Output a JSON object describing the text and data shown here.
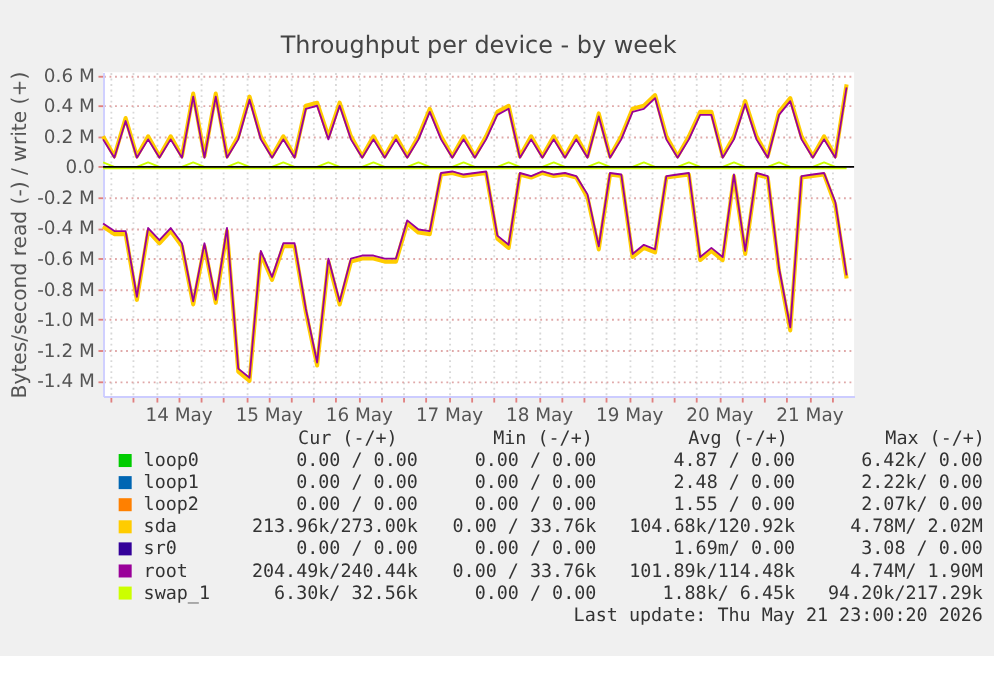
{
  "chart_data": {
    "type": "line",
    "title": "Throughput per device - by week",
    "ylabel": "Bytes/second read (-) / write (+)",
    "x": [
      "2026-05-13T16:00",
      "2026-05-13T19:00",
      "2026-05-13T22:00",
      "2026-05-14T01:00",
      "2026-05-14T04:00",
      "2026-05-14T07:00",
      "2026-05-14T10:00",
      "2026-05-14T13:00",
      "2026-05-14T16:00",
      "2026-05-14T19:00",
      "2026-05-14T22:00",
      "2026-05-15T01:00",
      "2026-05-15T04:00",
      "2026-05-15T07:00",
      "2026-05-15T10:00",
      "2026-05-15T13:00",
      "2026-05-15T16:00",
      "2026-05-15T19:00",
      "2026-05-15T22:00",
      "2026-05-16T01:00",
      "2026-05-16T04:00",
      "2026-05-16T07:00",
      "2026-05-16T10:00",
      "2026-05-16T13:00",
      "2026-05-16T16:00",
      "2026-05-16T19:00",
      "2026-05-16T22:00",
      "2026-05-17T01:00",
      "2026-05-17T04:00",
      "2026-05-17T07:00",
      "2026-05-17T10:00",
      "2026-05-17T13:00",
      "2026-05-17T16:00",
      "2026-05-17T19:00",
      "2026-05-17T22:00",
      "2026-05-18T01:00",
      "2026-05-18T04:00",
      "2026-05-18T07:00",
      "2026-05-18T10:00",
      "2026-05-18T13:00",
      "2026-05-18T16:00",
      "2026-05-18T19:00",
      "2026-05-18T22:00",
      "2026-05-19T01:00",
      "2026-05-19T04:00",
      "2026-05-19T07:00",
      "2026-05-19T10:00",
      "2026-05-19T13:00",
      "2026-05-19T16:00",
      "2026-05-19T19:00",
      "2026-05-19T22:00",
      "2026-05-20T01:00",
      "2026-05-20T04:00",
      "2026-05-20T07:00",
      "2026-05-20T10:00",
      "2026-05-20T13:00",
      "2026-05-20T16:00",
      "2026-05-20T19:00",
      "2026-05-20T22:00",
      "2026-05-21T01:00",
      "2026-05-21T04:00",
      "2026-05-21T07:00",
      "2026-05-21T10:00",
      "2026-05-21T13:00",
      "2026-05-21T16:00",
      "2026-05-21T19:00",
      "2026-05-21T22:00"
    ],
    "xlim": [
      "2026-05-13T16:00",
      "2026-05-22T00:00"
    ],
    "xticks": [
      {
        "value": "2026-05-13T18:00",
        "label": null
      },
      {
        "value": "2026-05-14T00:00",
        "label": null
      },
      {
        "value": "2026-05-14T06:00",
        "label": null
      },
      {
        "value": "2026-05-14T12:00",
        "label": "14 May"
      },
      {
        "value": "2026-05-14T18:00",
        "label": null
      },
      {
        "value": "2026-05-15T00:00",
        "label": null
      },
      {
        "value": "2026-05-15T06:00",
        "label": null
      },
      {
        "value": "2026-05-15T12:00",
        "label": "15 May"
      },
      {
        "value": "2026-05-15T18:00",
        "label": null
      },
      {
        "value": "2026-05-16T00:00",
        "label": null
      },
      {
        "value": "2026-05-16T06:00",
        "label": null
      },
      {
        "value": "2026-05-16T12:00",
        "label": "16 May"
      },
      {
        "value": "2026-05-16T18:00",
        "label": null
      },
      {
        "value": "2026-05-17T00:00",
        "label": null
      },
      {
        "value": "2026-05-17T06:00",
        "label": null
      },
      {
        "value": "2026-05-17T12:00",
        "label": "17 May"
      },
      {
        "value": "2026-05-17T18:00",
        "label": null
      },
      {
        "value": "2026-05-18T00:00",
        "label": null
      },
      {
        "value": "2026-05-18T06:00",
        "label": null
      },
      {
        "value": "2026-05-18T12:00",
        "label": "18 May"
      },
      {
        "value": "2026-05-18T18:00",
        "label": null
      },
      {
        "value": "2026-05-19T00:00",
        "label": null
      },
      {
        "value": "2026-05-19T06:00",
        "label": null
      },
      {
        "value": "2026-05-19T12:00",
        "label": "19 May"
      },
      {
        "value": "2026-05-19T18:00",
        "label": null
      },
      {
        "value": "2026-05-20T00:00",
        "label": null
      },
      {
        "value": "2026-05-20T06:00",
        "label": null
      },
      {
        "value": "2026-05-20T12:00",
        "label": "20 May"
      },
      {
        "value": "2026-05-20T18:00",
        "label": null
      },
      {
        "value": "2026-05-21T00:00",
        "label": null
      },
      {
        "value": "2026-05-21T06:00",
        "label": null
      },
      {
        "value": "2026-05-21T12:00",
        "label": "21 May"
      },
      {
        "value": "2026-05-21T18:00",
        "label": null
      }
    ],
    "ylim": [
      -1500000,
      620000
    ],
    "yticks": [
      {
        "value": 600000,
        "label": "0.6 M"
      },
      {
        "value": 400000,
        "label": "0.4 M"
      },
      {
        "value": 200000,
        "label": "0.2 M"
      },
      {
        "value": 0,
        "label": "0.0"
      },
      {
        "value": -200000,
        "label": "-0.2 M"
      },
      {
        "value": -400000,
        "label": "-0.4 M"
      },
      {
        "value": -600000,
        "label": "-0.6 M"
      },
      {
        "value": -800000,
        "label": "-0.8 M"
      },
      {
        "value": -1000000,
        "label": "-1.0 M"
      },
      {
        "value": -1200000,
        "label": "-1.2 M"
      },
      {
        "value": -1400000,
        "label": "-1.4 M"
      }
    ],
    "grid": true,
    "legend": "bottom",
    "ref_lines": [
      {
        "axis": "y",
        "value": 0,
        "color": "#000000"
      }
    ],
    "series": [
      {
        "name": "loop0",
        "color": "#00cc00",
        "values": [
          null,
          null,
          null,
          null,
          null,
          null,
          null,
          null,
          null,
          null,
          null,
          null,
          null,
          null,
          null,
          null,
          null,
          null,
          null,
          null,
          null,
          null,
          null,
          null,
          null,
          null,
          null,
          null,
          null,
          null,
          null,
          null,
          null,
          null,
          null,
          null,
          null,
          null,
          null,
          null,
          null,
          null,
          null,
          null,
          null,
          null,
          null,
          null,
          null,
          null,
          null,
          null,
          null,
          null,
          null,
          null,
          null,
          null,
          null,
          null,
          null,
          null,
          null,
          null,
          null,
          null,
          null
        ]
      },
      {
        "name": "loop1",
        "color": "#0066b3",
        "values": [
          null,
          null,
          null,
          null,
          null,
          null,
          null,
          null,
          null,
          null,
          null,
          null,
          null,
          null,
          null,
          null,
          null,
          null,
          null,
          null,
          null,
          null,
          null,
          null,
          null,
          null,
          null,
          null,
          null,
          null,
          null,
          null,
          null,
          null,
          null,
          null,
          null,
          null,
          null,
          null,
          null,
          null,
          null,
          null,
          null,
          null,
          null,
          null,
          null,
          null,
          null,
          null,
          null,
          null,
          null,
          null,
          null,
          null,
          null,
          null,
          null,
          null,
          null,
          null,
          null,
          null,
          null
        ]
      },
      {
        "name": "loop2",
        "color": "#ff8000",
        "values": [
          null,
          null,
          null,
          null,
          null,
          null,
          null,
          null,
          null,
          null,
          null,
          null,
          null,
          null,
          null,
          null,
          null,
          null,
          null,
          null,
          null,
          null,
          null,
          null,
          null,
          null,
          null,
          null,
          null,
          null,
          null,
          null,
          null,
          null,
          null,
          null,
          null,
          null,
          null,
          null,
          null,
          null,
          null,
          null,
          null,
          null,
          null,
          null,
          null,
          null,
          null,
          null,
          null,
          null,
          null,
          null,
          null,
          null,
          null,
          null,
          null,
          null,
          null,
          null,
          null,
          null,
          null
        ]
      },
      {
        "name": "sda",
        "color": "#ffcc00",
        "values": [
          200000,
          70000,
          320000,
          70000,
          200000,
          70000,
          200000,
          70000,
          480000,
          70000,
          480000,
          70000,
          200000,
          460000,
          200000,
          70000,
          200000,
          70000,
          400000,
          420000,
          200000,
          420000,
          200000,
          70000,
          200000,
          70000,
          200000,
          70000,
          200000,
          380000,
          200000,
          70000,
          200000,
          70000,
          200000,
          360000,
          400000,
          70000,
          200000,
          70000,
          200000,
          70000,
          200000,
          70000,
          350000,
          70000,
          200000,
          380000,
          400000,
          470000,
          200000,
          70000,
          200000,
          360000,
          360000,
          70000,
          200000,
          430000,
          200000,
          70000,
          360000,
          450000,
          200000,
          70000,
          200000,
          70000,
          540000
        ]
      },
      {
        "color": "#ffcc00",
        "values": [
          -390000,
          -440000,
          -440000,
          -870000,
          -420000,
          -500000,
          -420000,
          -520000,
          -900000,
          -520000,
          -890000,
          -420000,
          -1340000,
          -1400000,
          -570000,
          -740000,
          -520000,
          -520000,
          -950000,
          -1300000,
          -620000,
          -900000,
          -620000,
          -600000,
          -600000,
          -620000,
          -620000,
          -370000,
          -430000,
          -440000,
          -50000,
          -40000,
          -60000,
          -50000,
          -40000,
          -470000,
          -530000,
          -50000,
          -70000,
          -40000,
          -60000,
          -50000,
          -70000,
          -200000,
          -540000,
          -50000,
          -60000,
          -590000,
          -530000,
          -560000,
          -70000,
          -60000,
          -50000,
          -610000,
          -550000,
          -610000,
          -60000,
          -570000,
          -50000,
          -70000,
          -680000,
          -1070000,
          -70000,
          -60000,
          -50000,
          -250000,
          -730000
        ]
      },
      {
        "name": "sr0",
        "color": "#330099",
        "values": [
          null,
          null,
          null,
          null,
          null,
          null,
          null,
          null,
          null,
          null,
          null,
          null,
          null,
          null,
          null,
          null,
          null,
          null,
          null,
          null,
          null,
          null,
          null,
          null,
          null,
          null,
          null,
          null,
          null,
          null,
          null,
          null,
          null,
          null,
          null,
          null,
          null,
          null,
          null,
          null,
          null,
          null,
          null,
          null,
          null,
          null,
          null,
          null,
          null,
          null,
          null,
          null,
          null,
          null,
          null,
          null,
          null,
          null,
          null,
          null,
          null,
          null,
          null,
          null,
          null,
          null,
          null
        ]
      },
      {
        "name": "root",
        "color": "#990099",
        "values": [
          180000,
          60000,
          300000,
          60000,
          180000,
          60000,
          180000,
          60000,
          460000,
          60000,
          460000,
          60000,
          180000,
          440000,
          180000,
          60000,
          180000,
          60000,
          380000,
          400000,
          180000,
          400000,
          180000,
          60000,
          180000,
          60000,
          180000,
          60000,
          180000,
          360000,
          180000,
          60000,
          180000,
          60000,
          180000,
          340000,
          380000,
          60000,
          180000,
          60000,
          180000,
          60000,
          180000,
          60000,
          330000,
          60000,
          180000,
          360000,
          380000,
          450000,
          180000,
          60000,
          180000,
          340000,
          340000,
          60000,
          180000,
          410000,
          180000,
          60000,
          340000,
          430000,
          180000,
          60000,
          180000,
          60000,
          520000
        ]
      },
      {
        "color": "#990099",
        "values": [
          -370000,
          -420000,
          -420000,
          -850000,
          -400000,
          -480000,
          -400000,
          -500000,
          -880000,
          -500000,
          -870000,
          -400000,
          -1320000,
          -1380000,
          -550000,
          -720000,
          -500000,
          -500000,
          -930000,
          -1280000,
          -600000,
          -880000,
          -600000,
          -580000,
          -580000,
          -600000,
          -600000,
          -350000,
          -410000,
          -420000,
          -40000,
          -30000,
          -50000,
          -40000,
          -30000,
          -450000,
          -510000,
          -40000,
          -60000,
          -30000,
          -50000,
          -40000,
          -60000,
          -180000,
          -520000,
          -40000,
          -50000,
          -570000,
          -510000,
          -540000,
          -60000,
          -50000,
          -40000,
          -590000,
          -530000,
          -590000,
          -50000,
          -550000,
          -40000,
          -60000,
          -660000,
          -1050000,
          -60000,
          -50000,
          -40000,
          -230000,
          -710000
        ]
      },
      {
        "name": "swap_1",
        "color": "#ccff00",
        "values": [
          30000,
          0,
          0,
          0,
          30000,
          0,
          0,
          0,
          30000,
          0,
          0,
          0,
          30000,
          0,
          0,
          0,
          30000,
          0,
          0,
          0,
          30000,
          0,
          0,
          0,
          30000,
          0,
          0,
          0,
          30000,
          0,
          0,
          0,
          30000,
          0,
          0,
          0,
          30000,
          0,
          0,
          0,
          30000,
          0,
          0,
          0,
          30000,
          0,
          0,
          0,
          30000,
          0,
          0,
          0,
          30000,
          0,
          0,
          0,
          30000,
          0,
          0,
          0,
          30000,
          0,
          0,
          0,
          30000,
          0,
          0
        ]
      },
      {
        "color": "#ccff00",
        "values": [
          -10000,
          -10000,
          -10000,
          -10000,
          -10000,
          -10000,
          -10000,
          -10000,
          -10000,
          -10000,
          -10000,
          -10000,
          -10000,
          -10000,
          -10000,
          -10000,
          -10000,
          -10000,
          -10000,
          -10000,
          -10000,
          -10000,
          -10000,
          -10000,
          -10000,
          -10000,
          -10000,
          -10000,
          -10000,
          -10000,
          -10000,
          -10000,
          -10000,
          -10000,
          -10000,
          -10000,
          -10000,
          -10000,
          -10000,
          -10000,
          -10000,
          -10000,
          -10000,
          -10000,
          -10000,
          -10000,
          -10000,
          -10000,
          -10000,
          -10000,
          -10000,
          -10000,
          -10000,
          -10000,
          -10000,
          -10000,
          -10000,
          -10000,
          -10000,
          -10000,
          -10000,
          -10000,
          -10000,
          -10000,
          -10000,
          -10000,
          -10000
        ]
      }
    ],
    "annotations": [
      "Cur (-/+)",
      "Min (-/+)",
      "Avg (-/+)",
      "Max (-/+)",
      "0.00 /  0.00",
      "0.00 /  0.00",
      "4.87 /  0.00",
      "6.42k/  0.00",
      "0.00 /  0.00",
      "0.00 /  0.00",
      "2.48 /  0.00",
      "2.22k/  0.00",
      "0.00 /  0.00",
      "0.00 /  0.00",
      "1.55 /  0.00",
      "2.07k/  0.00",
      "213.96k/273.00k",
      "0.00 / 33.76k",
      "104.68k/120.92k",
      "4.78M/  2.02M",
      "0.00 /  0.00",
      "0.00 /  0.00",
      "1.69m/  0.00",
      "3.08 /  0.00",
      "204.49k/240.44k",
      "0.00 / 33.76k",
      "101.89k/114.48k",
      "4.74M/  1.90M",
      "6.30k/ 32.56k",
      "0.00 /  0.00",
      "1.88k/  6.45k",
      "94.20k/217.29k",
      "Last update: Thu May 21 23:00:20 2026"
    ]
  }
}
